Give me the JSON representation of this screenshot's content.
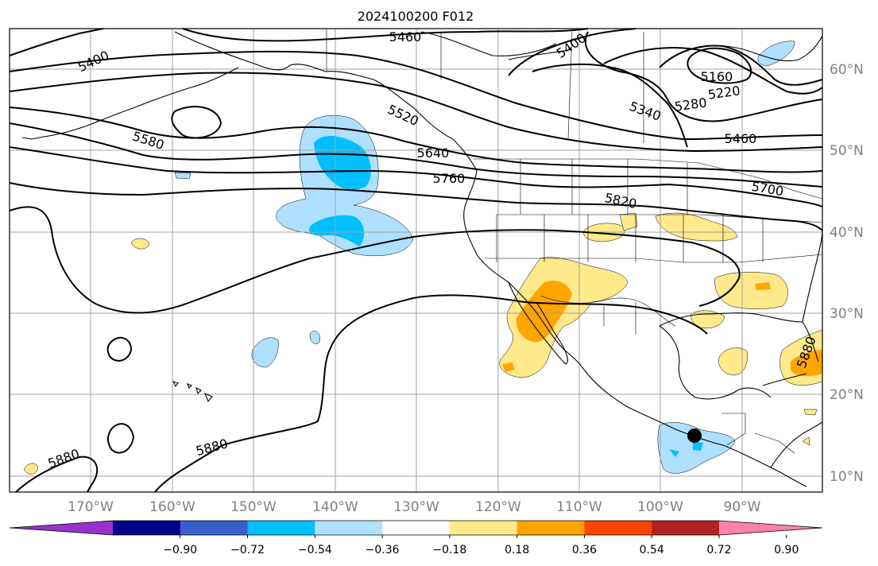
{
  "title": "2024100200 F012",
  "map": {
    "lat_labels": [
      "60°N",
      "50°N",
      "40°N",
      "30°N",
      "20°N",
      "10°N"
    ],
    "lon_labels": [
      "170°W",
      "160°W",
      "150°W",
      "140°W",
      "130°W",
      "120°W",
      "110°W",
      "100°W",
      "90°W"
    ],
    "height_contour_labels": [
      "5460",
      "5400",
      "5400",
      "5160",
      "5220",
      "5280",
      "5340",
      "5460",
      "5700",
      "5580",
      "5640",
      "5760",
      "5820",
      "5520",
      "5880",
      "5880",
      "5880"
    ],
    "storm_marker": "storm-center-marker",
    "colors": {
      "ocean": "#ffffff",
      "grid": "#a0a0a0",
      "coast": "#000000"
    }
  },
  "colorbar": {
    "ticks": [
      "−0.90",
      "−0.72",
      "−0.54",
      "−0.36",
      "−0.18",
      "0.18",
      "0.36",
      "0.54",
      "0.72",
      "0.90"
    ],
    "colors": [
      "#9932cc",
      "#00008b",
      "#3a5fcd",
      "#00bfff",
      "#b0e0ff",
      "#ffffff",
      "#ffe98a",
      "#ffa500",
      "#ff4500",
      "#b22222",
      "#ff82ab"
    ]
  }
}
